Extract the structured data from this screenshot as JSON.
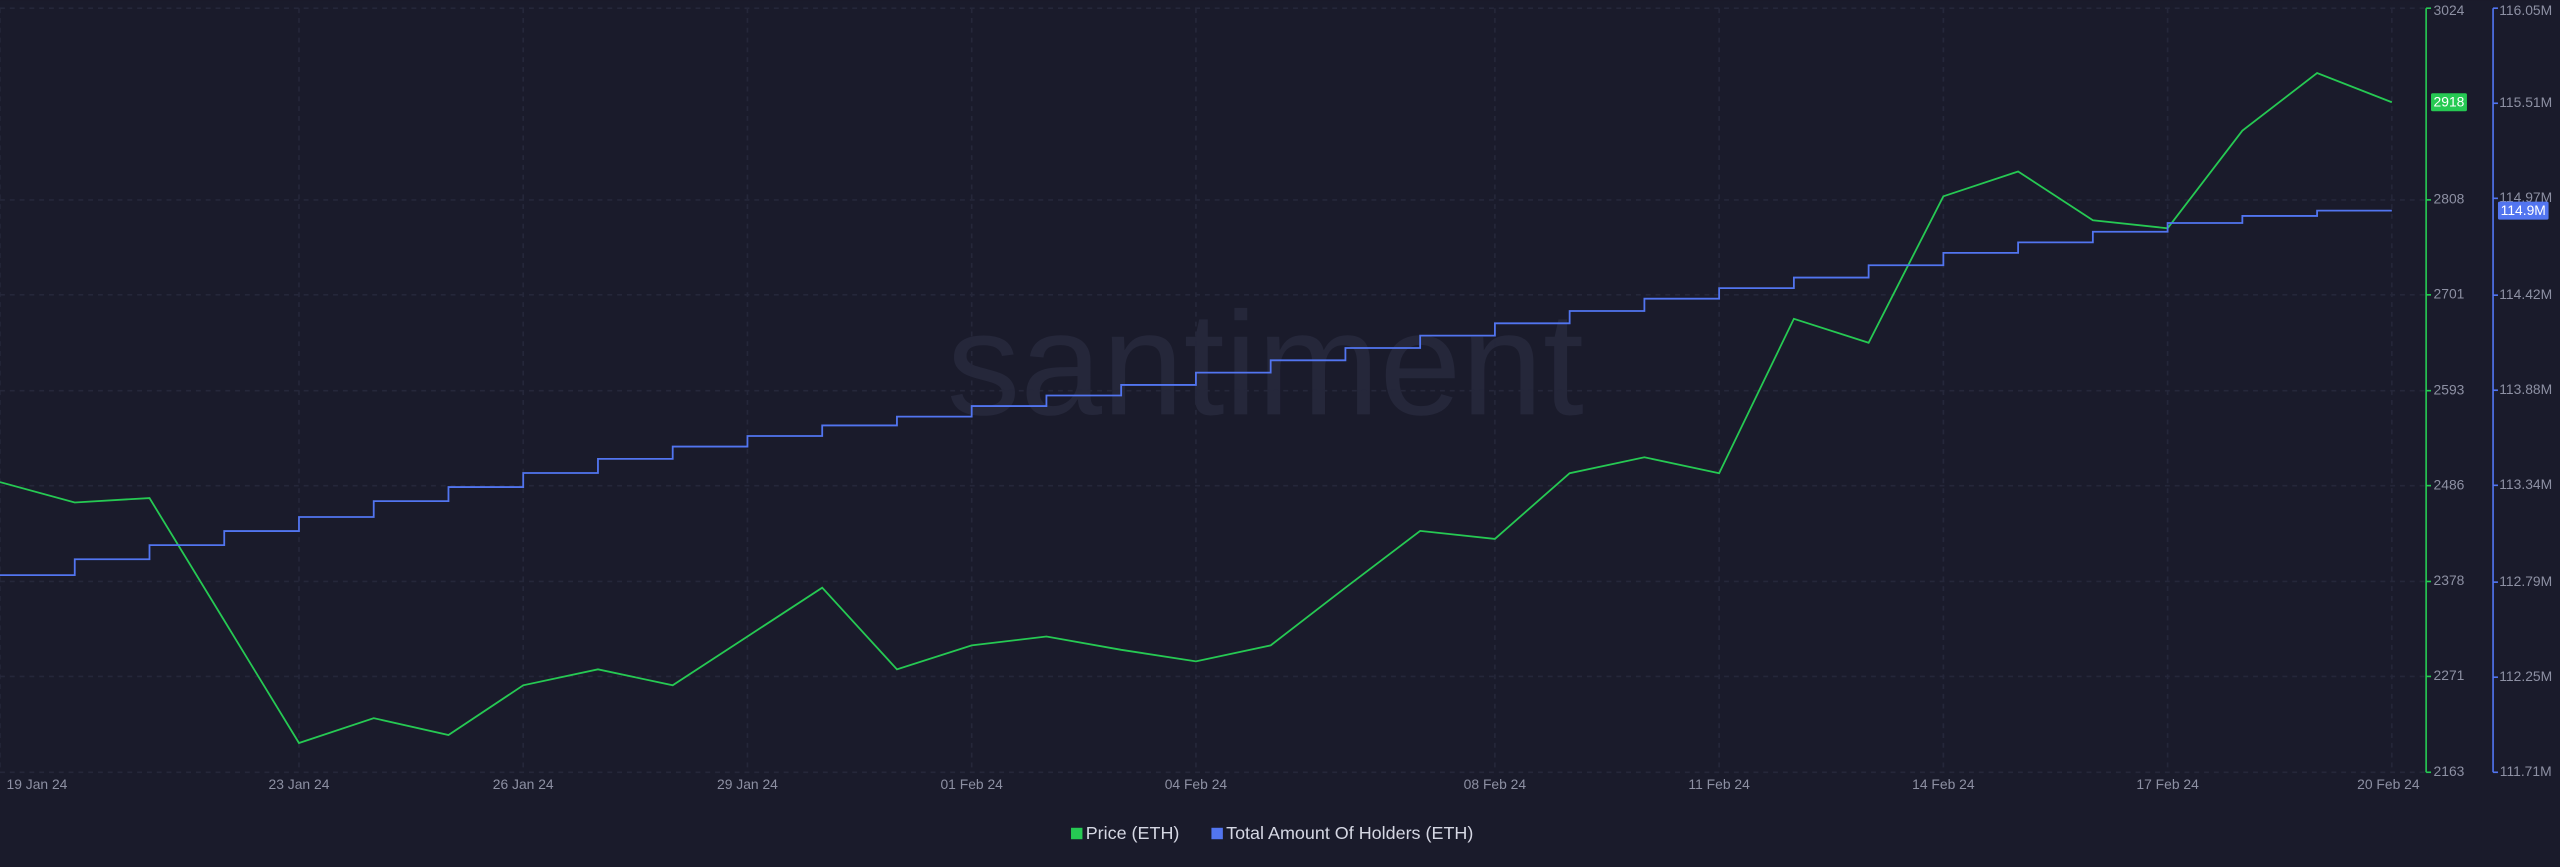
{
  "chart_data": {
    "type": "line",
    "watermark": "santiment",
    "x": [
      "2024-01-19",
      "2024-01-20",
      "2024-01-21",
      "2024-01-22",
      "2024-01-23",
      "2024-01-24",
      "2024-01-25",
      "2024-01-26",
      "2024-01-27",
      "2024-01-28",
      "2024-01-29",
      "2024-01-30",
      "2024-01-31",
      "2024-02-01",
      "2024-02-02",
      "2024-02-03",
      "2024-02-04",
      "2024-02-05",
      "2024-02-06",
      "2024-02-07",
      "2024-02-08",
      "2024-02-09",
      "2024-02-10",
      "2024-02-11",
      "2024-02-12",
      "2024-02-13",
      "2024-02-14",
      "2024-02-15",
      "2024-02-16",
      "2024-02-17",
      "2024-02-18",
      "2024-02-19",
      "2024-02-20"
    ],
    "xlim": [
      "2024-01-19",
      "2024-02-20"
    ],
    "xticks": [
      {
        "value": "2024-01-19",
        "label": "19 Jan 24"
      },
      {
        "value": "2024-01-23",
        "label": "23 Jan 24"
      },
      {
        "value": "2024-01-26",
        "label": "26 Jan 24"
      },
      {
        "value": "2024-01-29",
        "label": "29 Jan 24"
      },
      {
        "value": "2024-02-01",
        "label": "01 Feb 24"
      },
      {
        "value": "2024-02-04",
        "label": "04 Feb 24"
      },
      {
        "value": "2024-02-08",
        "label": "08 Feb 24"
      },
      {
        "value": "2024-02-11",
        "label": "11 Feb 24"
      },
      {
        "value": "2024-02-14",
        "label": "14 Feb 24"
      },
      {
        "value": "2024-02-17",
        "label": "17 Feb 24"
      },
      {
        "value": "2024-02-20",
        "label": "20 Feb 24"
      }
    ],
    "ylim": [
      2163,
      3024
    ],
    "yticks": [
      2163,
      2271,
      2378,
      2486,
      2593,
      2701,
      2808,
      3024
    ],
    "y2lim": [
      111.71,
      116.05
    ],
    "y2ticks": [
      {
        "value": 111.71,
        "label": "111.71M"
      },
      {
        "value": 112.25,
        "label": "112.25M"
      },
      {
        "value": 112.79,
        "label": "112.79M"
      },
      {
        "value": 113.34,
        "label": "113.34M"
      },
      {
        "value": 113.88,
        "label": "113.88M"
      },
      {
        "value": 114.42,
        "label": "114.42M"
      },
      {
        "value": 114.97,
        "label": "114.97M"
      },
      {
        "value": 115.51,
        "label": "115.51M"
      },
      {
        "value": 116.05,
        "label": "116.05M"
      }
    ],
    "grid": true,
    "series": [
      {
        "name": "Price (ETH)",
        "color": "#26c953",
        "axis": "y",
        "values": [
          2490,
          2467,
          2472,
          2334,
          2196,
          2224,
          2205,
          2261,
          2279,
          2261,
          2316,
          2371,
          2279,
          2306,
          2316,
          2301,
          2288,
          2306,
          2371,
          2435,
          2426,
          2500,
          2518,
          2500,
          2674,
          2647,
          2812,
          2840,
          2785,
          2776,
          2886,
          2951,
          2918
        ]
      },
      {
        "name": "Total Amount Of Holders (ETH)",
        "color": "#5275f0",
        "axis": "y2",
        "step": true,
        "values": [
          112.83,
          112.92,
          113.0,
          113.08,
          113.16,
          113.25,
          113.33,
          113.41,
          113.49,
          113.56,
          113.62,
          113.68,
          113.73,
          113.79,
          113.85,
          113.91,
          113.98,
          114.05,
          114.12,
          114.19,
          114.26,
          114.33,
          114.4,
          114.46,
          114.52,
          114.59,
          114.66,
          114.72,
          114.78,
          114.83,
          114.87,
          114.9,
          114.9
        ],
        "value_labels": [
          null,
          null,
          null,
          null,
          null,
          null,
          null,
          null,
          null,
          null,
          null,
          null,
          null,
          null,
          null,
          null,
          null,
          null,
          null,
          null,
          null,
          null,
          null,
          null,
          null,
          null,
          null,
          null,
          null,
          null,
          null,
          null,
          "114.9M"
        ]
      }
    ]
  }
}
